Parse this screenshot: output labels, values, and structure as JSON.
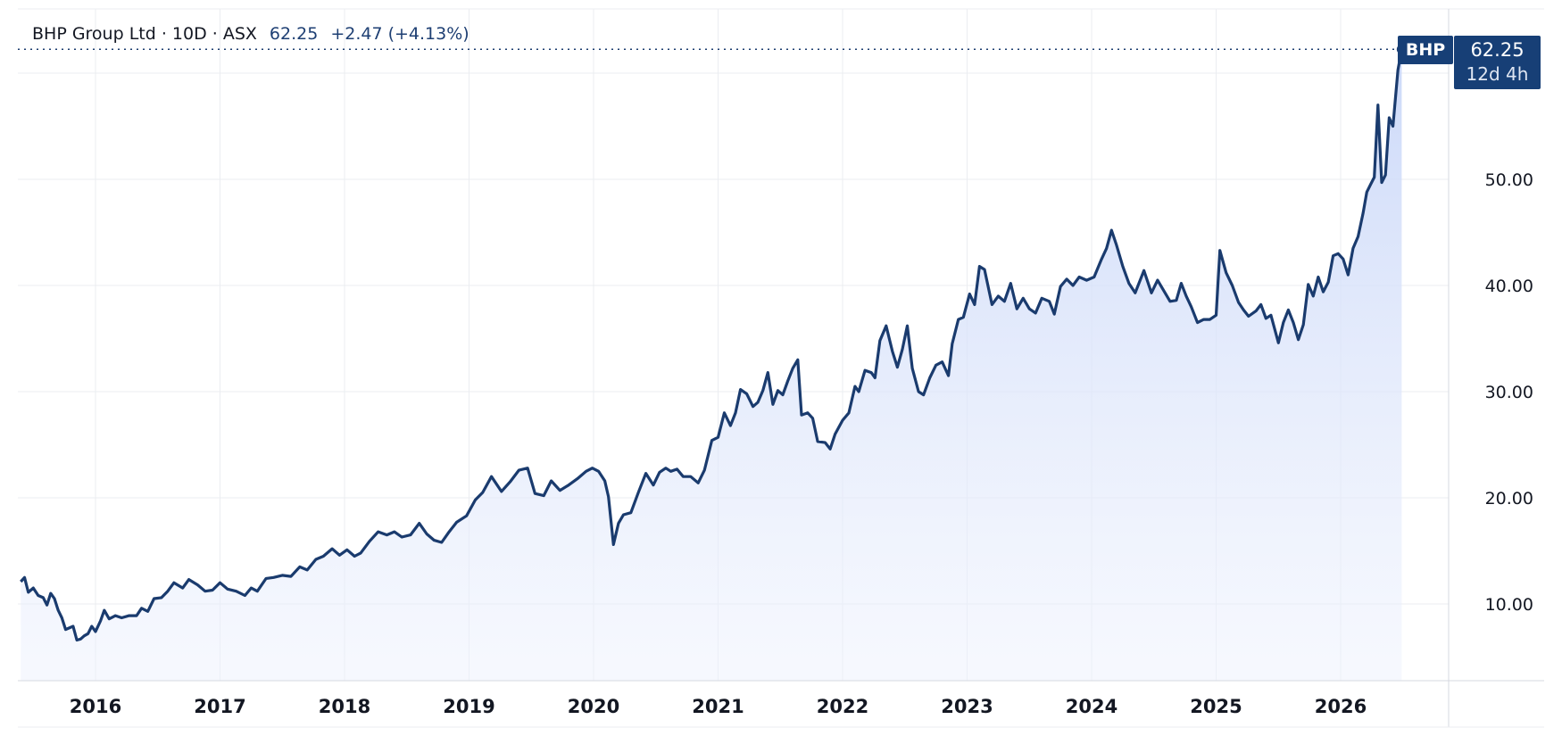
{
  "header": {
    "symbol_line": "BHP Group Ltd · 10D · ASX",
    "last": "62.25",
    "change": "+2.47 (+4.13%)"
  },
  "price_badge": {
    "ticker": "BHP",
    "value": "62.25",
    "countdown": "12d 4h"
  },
  "colors": {
    "line": "#1a3b6e",
    "fill_top": "#c9d7f8",
    "fill_bottom": "#ffffff",
    "grid": "#ebedf1",
    "badge": "#173f76"
  },
  "chart_data": {
    "type": "area",
    "title": "BHP Group Ltd · 10D · ASX",
    "xlabel": "",
    "ylabel": "",
    "x_ticks": [
      "2016",
      "2017",
      "2018",
      "2019",
      "2020",
      "2021",
      "2022",
      "2023",
      "2024",
      "2025",
      "2026"
    ],
    "y_ticks": [
      "10.00",
      "20.00",
      "30.00",
      "40.00",
      "50.00"
    ],
    "ylim": [
      3.5,
      66
    ],
    "xlim": [
      2015.4,
      2026.9
    ],
    "grid": true,
    "legend": "none",
    "series": [
      {
        "name": "BHP",
        "points": [
          [
            2015.4,
            12.1
          ],
          [
            2015.43,
            12.5
          ],
          [
            2015.46,
            11.1
          ],
          [
            2015.5,
            11.5
          ],
          [
            2015.54,
            10.8
          ],
          [
            2015.58,
            10.6
          ],
          [
            2015.61,
            9.9
          ],
          [
            2015.64,
            11.0
          ],
          [
            2015.67,
            10.5
          ],
          [
            2015.7,
            9.4
          ],
          [
            2015.73,
            8.7
          ],
          [
            2015.76,
            7.6
          ],
          [
            2015.82,
            7.9
          ],
          [
            2015.85,
            6.6
          ],
          [
            2015.88,
            6.7
          ],
          [
            2015.91,
            7.0
          ],
          [
            2015.94,
            7.2
          ],
          [
            2015.97,
            7.9
          ],
          [
            2016.0,
            7.4
          ],
          [
            2016.04,
            8.4
          ],
          [
            2016.07,
            9.4
          ],
          [
            2016.11,
            8.6
          ],
          [
            2016.16,
            8.9
          ],
          [
            2016.21,
            8.7
          ],
          [
            2016.27,
            8.9
          ],
          [
            2016.33,
            8.9
          ],
          [
            2016.37,
            9.6
          ],
          [
            2016.42,
            9.3
          ],
          [
            2016.47,
            10.5
          ],
          [
            2016.53,
            10.6
          ],
          [
            2016.58,
            11.2
          ],
          [
            2016.63,
            12.0
          ],
          [
            2016.7,
            11.5
          ],
          [
            2016.75,
            12.3
          ],
          [
            2016.82,
            11.8
          ],
          [
            2016.88,
            11.2
          ],
          [
            2016.94,
            11.3
          ],
          [
            2017.0,
            12.0
          ],
          [
            2017.06,
            11.4
          ],
          [
            2017.13,
            11.2
          ],
          [
            2017.2,
            10.8
          ],
          [
            2017.25,
            11.5
          ],
          [
            2017.3,
            11.2
          ],
          [
            2017.37,
            12.4
          ],
          [
            2017.43,
            12.5
          ],
          [
            2017.5,
            12.7
          ],
          [
            2017.57,
            12.6
          ],
          [
            2017.64,
            13.5
          ],
          [
            2017.7,
            13.2
          ],
          [
            2017.77,
            14.2
          ],
          [
            2017.83,
            14.5
          ],
          [
            2017.9,
            15.2
          ],
          [
            2017.96,
            14.6
          ],
          [
            2018.02,
            15.1
          ],
          [
            2018.08,
            14.5
          ],
          [
            2018.13,
            14.8
          ],
          [
            2018.2,
            15.9
          ],
          [
            2018.27,
            16.8
          ],
          [
            2018.34,
            16.5
          ],
          [
            2018.4,
            16.8
          ],
          [
            2018.46,
            16.3
          ],
          [
            2018.53,
            16.5
          ],
          [
            2018.6,
            17.6
          ],
          [
            2018.66,
            16.6
          ],
          [
            2018.72,
            16.0
          ],
          [
            2018.78,
            15.8
          ],
          [
            2018.84,
            16.8
          ],
          [
            2018.9,
            17.7
          ],
          [
            2018.98,
            18.3
          ],
          [
            2019.05,
            19.8
          ],
          [
            2019.11,
            20.5
          ],
          [
            2019.18,
            22.0
          ],
          [
            2019.26,
            20.6
          ],
          [
            2019.33,
            21.5
          ],
          [
            2019.4,
            22.6
          ],
          [
            2019.47,
            22.8
          ],
          [
            2019.53,
            20.4
          ],
          [
            2019.6,
            20.2
          ],
          [
            2019.66,
            21.6
          ],
          [
            2019.73,
            20.7
          ],
          [
            2019.8,
            21.2
          ],
          [
            2019.87,
            21.8
          ],
          [
            2019.94,
            22.5
          ],
          [
            2019.99,
            22.8
          ],
          [
            2020.04,
            22.5
          ],
          [
            2020.09,
            21.6
          ],
          [
            2020.12,
            20.1
          ],
          [
            2020.16,
            15.6
          ],
          [
            2020.2,
            17.6
          ],
          [
            2020.24,
            18.4
          ],
          [
            2020.3,
            18.6
          ],
          [
            2020.36,
            20.5
          ],
          [
            2020.42,
            22.3
          ],
          [
            2020.48,
            21.2
          ],
          [
            2020.53,
            22.4
          ],
          [
            2020.58,
            22.8
          ],
          [
            2020.62,
            22.5
          ],
          [
            2020.67,
            22.7
          ],
          [
            2020.72,
            22.0
          ],
          [
            2020.78,
            22.0
          ],
          [
            2020.84,
            21.4
          ],
          [
            2020.89,
            22.6
          ],
          [
            2020.95,
            25.4
          ],
          [
            2021.0,
            25.7
          ],
          [
            2021.05,
            28.0
          ],
          [
            2021.1,
            26.8
          ],
          [
            2021.14,
            28.0
          ],
          [
            2021.18,
            30.2
          ],
          [
            2021.23,
            29.8
          ],
          [
            2021.28,
            28.6
          ],
          [
            2021.32,
            29.0
          ],
          [
            2021.36,
            30.1
          ],
          [
            2021.4,
            31.8
          ],
          [
            2021.44,
            28.8
          ],
          [
            2021.48,
            30.1
          ],
          [
            2021.52,
            29.7
          ],
          [
            2021.56,
            31.0
          ],
          [
            2021.6,
            32.2
          ],
          [
            2021.64,
            33.0
          ],
          [
            2021.67,
            27.8
          ],
          [
            2021.72,
            28.0
          ],
          [
            2021.76,
            27.5
          ],
          [
            2021.8,
            25.3
          ],
          [
            2021.86,
            25.2
          ],
          [
            2021.9,
            24.6
          ],
          [
            2021.94,
            26.0
          ],
          [
            2022.0,
            27.3
          ],
          [
            2022.05,
            28.0
          ],
          [
            2022.1,
            30.5
          ],
          [
            2022.13,
            30.0
          ],
          [
            2022.18,
            32.0
          ],
          [
            2022.23,
            31.8
          ],
          [
            2022.26,
            31.3
          ],
          [
            2022.3,
            34.8
          ],
          [
            2022.35,
            36.2
          ],
          [
            2022.4,
            33.8
          ],
          [
            2022.44,
            32.3
          ],
          [
            2022.48,
            34.0
          ],
          [
            2022.52,
            36.2
          ],
          [
            2022.56,
            32.2
          ],
          [
            2022.61,
            30.0
          ],
          [
            2022.65,
            29.7
          ],
          [
            2022.7,
            31.3
          ],
          [
            2022.75,
            32.5
          ],
          [
            2022.8,
            32.8
          ],
          [
            2022.85,
            31.5
          ],
          [
            2022.88,
            34.5
          ],
          [
            2022.93,
            36.8
          ],
          [
            2022.97,
            37.0
          ],
          [
            2023.02,
            39.2
          ],
          [
            2023.06,
            38.2
          ],
          [
            2023.1,
            41.8
          ],
          [
            2023.14,
            41.5
          ],
          [
            2023.2,
            38.2
          ],
          [
            2023.25,
            39.0
          ],
          [
            2023.3,
            38.5
          ],
          [
            2023.35,
            40.2
          ],
          [
            2023.4,
            37.8
          ],
          [
            2023.45,
            38.8
          ],
          [
            2023.5,
            37.8
          ],
          [
            2023.55,
            37.4
          ],
          [
            2023.6,
            38.8
          ],
          [
            2023.66,
            38.5
          ],
          [
            2023.7,
            37.3
          ],
          [
            2023.75,
            39.9
          ],
          [
            2023.8,
            40.6
          ],
          [
            2023.85,
            40.0
          ],
          [
            2023.9,
            40.8
          ],
          [
            2023.96,
            40.5
          ],
          [
            2024.02,
            40.8
          ],
          [
            2024.08,
            42.5
          ],
          [
            2024.12,
            43.5
          ],
          [
            2024.16,
            45.2
          ],
          [
            2024.2,
            43.8
          ],
          [
            2024.25,
            41.8
          ],
          [
            2024.3,
            40.2
          ],
          [
            2024.35,
            39.3
          ],
          [
            2024.42,
            41.4
          ],
          [
            2024.48,
            39.3
          ],
          [
            2024.53,
            40.5
          ],
          [
            2024.58,
            39.5
          ],
          [
            2024.63,
            38.5
          ],
          [
            2024.68,
            38.6
          ],
          [
            2024.72,
            40.2
          ],
          [
            2024.76,
            39.0
          ],
          [
            2024.8,
            38.0
          ],
          [
            2024.85,
            36.5
          ],
          [
            2024.9,
            36.8
          ],
          [
            2024.95,
            36.8
          ],
          [
            2025.0,
            37.2
          ],
          [
            2025.03,
            43.3
          ],
          [
            2025.08,
            41.2
          ],
          [
            2025.13,
            40.0
          ],
          [
            2025.18,
            38.4
          ],
          [
            2025.22,
            37.7
          ],
          [
            2025.26,
            37.1
          ],
          [
            2025.32,
            37.6
          ],
          [
            2025.36,
            38.2
          ],
          [
            2025.4,
            36.9
          ],
          [
            2025.44,
            37.2
          ],
          [
            2025.47,
            35.9
          ],
          [
            2025.5,
            34.6
          ],
          [
            2025.54,
            36.5
          ],
          [
            2025.58,
            37.7
          ],
          [
            2025.62,
            36.5
          ],
          [
            2025.66,
            34.9
          ],
          [
            2025.7,
            36.3
          ],
          [
            2025.74,
            40.1
          ],
          [
            2025.78,
            39.0
          ],
          [
            2025.82,
            40.8
          ],
          [
            2025.86,
            39.4
          ],
          [
            2025.9,
            40.3
          ],
          [
            2025.94,
            42.8
          ],
          [
            2025.98,
            43.0
          ],
          [
            2026.02,
            42.5
          ],
          [
            2026.06,
            41.0
          ],
          [
            2026.1,
            43.5
          ],
          [
            2026.14,
            44.6
          ],
          [
            2026.18,
            46.8
          ],
          [
            2026.21,
            48.8
          ],
          [
            2026.24,
            49.5
          ],
          [
            2026.27,
            50.2
          ],
          [
            2026.3,
            57.0
          ],
          [
            2026.33,
            49.7
          ],
          [
            2026.36,
            50.4
          ],
          [
            2026.39,
            55.8
          ],
          [
            2026.42,
            55.0
          ],
          [
            2026.46,
            60.3
          ],
          [
            2026.49,
            62.25
          ]
        ]
      }
    ]
  }
}
